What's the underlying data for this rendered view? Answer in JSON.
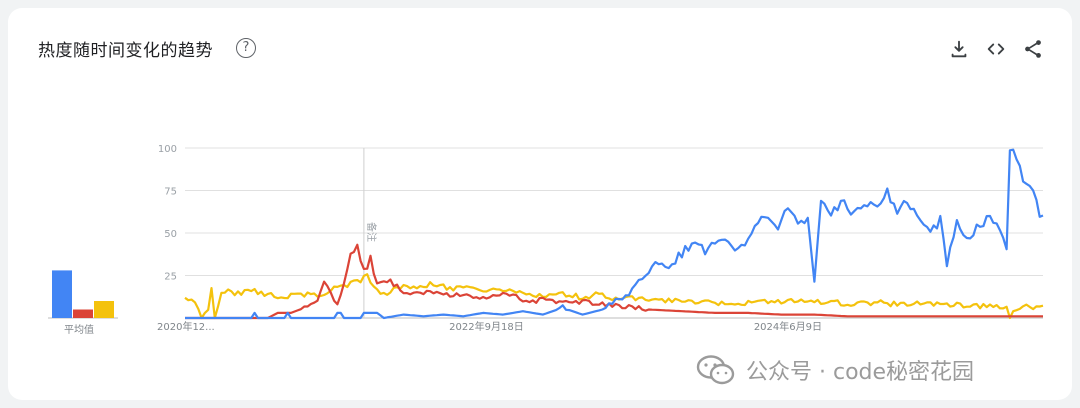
{
  "card": {
    "title": "热度随时间变化的趋势",
    "help_glyph": "?"
  },
  "toolbar": {
    "icons": [
      "download-icon",
      "embed-code-icon",
      "share-icon"
    ]
  },
  "avg": {
    "label": "平均值"
  },
  "annotation": {
    "label": "备注"
  },
  "watermark": {
    "text": "公众号 · code秘密花园"
  },
  "colors": {
    "blue": "#4285f4",
    "red": "#db4437",
    "yellow": "#f4c20d",
    "grid": "#e0e0e0",
    "axis": "#bdbdbd"
  },
  "chart_data": {
    "type": "line",
    "ylim": [
      0,
      100
    ],
    "y_ticks": [
      25,
      50,
      75,
      100
    ],
    "y_tick_labels": [
      "25",
      "50",
      "75",
      "100"
    ],
    "x_tick_labels": [
      "2020年12...",
      "2022年9月18日",
      "2024年6月9日"
    ],
    "x_tick_index": [
      0,
      91,
      182
    ],
    "n_points": 260,
    "annotation_index": 54,
    "series": [
      {
        "color": "#4285f4",
        "average": 28,
        "anchors": [
          [
            0,
            0
          ],
          [
            20,
            0
          ],
          [
            21,
            3
          ],
          [
            22,
            0
          ],
          [
            30,
            0
          ],
          [
            31,
            3
          ],
          [
            32,
            0
          ],
          [
            45,
            0
          ],
          [
            46,
            3
          ],
          [
            47,
            3
          ],
          [
            48,
            0
          ],
          [
            53,
            0
          ],
          [
            54,
            3
          ],
          [
            58,
            3
          ],
          [
            60,
            0
          ],
          [
            66,
            2
          ],
          [
            72,
            1
          ],
          [
            78,
            2
          ],
          [
            84,
            1
          ],
          [
            90,
            3
          ],
          [
            96,
            2
          ],
          [
            102,
            4
          ],
          [
            108,
            2
          ],
          [
            114,
            6
          ],
          [
            120,
            2
          ],
          [
            126,
            5
          ],
          [
            130,
            10
          ],
          [
            134,
            14
          ],
          [
            137,
            22
          ],
          [
            140,
            28
          ],
          [
            143,
            32
          ],
          [
            146,
            30
          ],
          [
            150,
            38
          ],
          [
            153,
            44
          ],
          [
            156,
            40
          ],
          [
            160,
            42
          ],
          [
            164,
            46
          ],
          [
            167,
            40
          ],
          [
            170,
            45
          ],
          [
            173,
            56
          ],
          [
            176,
            58
          ],
          [
            179,
            55
          ],
          [
            182,
            63
          ],
          [
            185,
            55
          ],
          [
            188,
            58
          ],
          [
            190,
            20
          ],
          [
            192,
            66
          ],
          [
            195,
            62
          ],
          [
            198,
            68
          ],
          [
            202,
            62
          ],
          [
            206,
            68
          ],
          [
            210,
            67
          ],
          [
            212,
            75
          ],
          [
            215,
            62
          ],
          [
            218,
            68
          ],
          [
            222,
            60
          ],
          [
            225,
            50
          ],
          [
            228,
            58
          ],
          [
            230,
            32
          ],
          [
            233,
            55
          ],
          [
            236,
            48
          ],
          [
            240,
            55
          ],
          [
            243,
            60
          ],
          [
            246,
            52
          ],
          [
            248,
            40
          ],
          [
            249,
            100
          ],
          [
            251,
            96
          ],
          [
            253,
            82
          ],
          [
            256,
            78
          ],
          [
            258,
            60
          ],
          [
            259,
            58
          ]
        ]
      },
      {
        "color": "#db4437",
        "average": 5,
        "anchors": [
          [
            0,
            0
          ],
          [
            25,
            0
          ],
          [
            28,
            3
          ],
          [
            32,
            3
          ],
          [
            36,
            6
          ],
          [
            40,
            10
          ],
          [
            42,
            22
          ],
          [
            44,
            14
          ],
          [
            46,
            8
          ],
          [
            48,
            20
          ],
          [
            50,
            36
          ],
          [
            52,
            44
          ],
          [
            54,
            28
          ],
          [
            56,
            34
          ],
          [
            57,
            26
          ],
          [
            58,
            20
          ],
          [
            62,
            22
          ],
          [
            66,
            15
          ],
          [
            70,
            14
          ],
          [
            75,
            16
          ],
          [
            80,
            13
          ],
          [
            85,
            14
          ],
          [
            90,
            12
          ],
          [
            95,
            14
          ],
          [
            100,
            12
          ],
          [
            105,
            10
          ],
          [
            110,
            11
          ],
          [
            115,
            9
          ],
          [
            120,
            10
          ],
          [
            125,
            8
          ],
          [
            130,
            7
          ],
          [
            140,
            5
          ],
          [
            150,
            4
          ],
          [
            160,
            3
          ],
          [
            170,
            3
          ],
          [
            180,
            2
          ],
          [
            190,
            2
          ],
          [
            200,
            1
          ],
          [
            210,
            1
          ],
          [
            220,
            1
          ],
          [
            230,
            1
          ],
          [
            240,
            1
          ],
          [
            250,
            1
          ],
          [
            259,
            1
          ]
        ]
      },
      {
        "color": "#f4c20d",
        "average": 10,
        "anchors": [
          [
            0,
            12
          ],
          [
            2,
            10
          ],
          [
            4,
            6
          ],
          [
            5,
            0
          ],
          [
            7,
            6
          ],
          [
            8,
            18
          ],
          [
            9,
            0
          ],
          [
            11,
            14
          ],
          [
            13,
            18
          ],
          [
            15,
            14
          ],
          [
            20,
            16
          ],
          [
            25,
            14
          ],
          [
            30,
            12
          ],
          [
            35,
            14
          ],
          [
            40,
            13
          ],
          [
            45,
            18
          ],
          [
            50,
            20
          ],
          [
            53,
            22
          ],
          [
            55,
            25
          ],
          [
            57,
            18
          ],
          [
            60,
            14
          ],
          [
            65,
            18
          ],
          [
            70,
            18
          ],
          [
            75,
            20
          ],
          [
            80,
            17
          ],
          [
            85,
            18
          ],
          [
            90,
            16
          ],
          [
            95,
            17
          ],
          [
            100,
            15
          ],
          [
            105,
            14
          ],
          [
            110,
            13
          ],
          [
            115,
            14
          ],
          [
            120,
            12
          ],
          [
            125,
            14
          ],
          [
            130,
            11
          ],
          [
            135,
            12
          ],
          [
            140,
            10
          ],
          [
            150,
            10
          ],
          [
            160,
            9
          ],
          [
            170,
            9
          ],
          [
            180,
            10
          ],
          [
            185,
            11
          ],
          [
            190,
            9
          ],
          [
            195,
            10
          ],
          [
            200,
            8
          ],
          [
            205,
            9
          ],
          [
            210,
            9
          ],
          [
            215,
            8
          ],
          [
            220,
            9
          ],
          [
            225,
            8
          ],
          [
            230,
            8
          ],
          [
            240,
            7
          ],
          [
            248,
            6
          ],
          [
            249,
            0
          ],
          [
            250,
            4
          ],
          [
            255,
            7
          ],
          [
            259,
            6
          ]
        ]
      }
    ]
  }
}
